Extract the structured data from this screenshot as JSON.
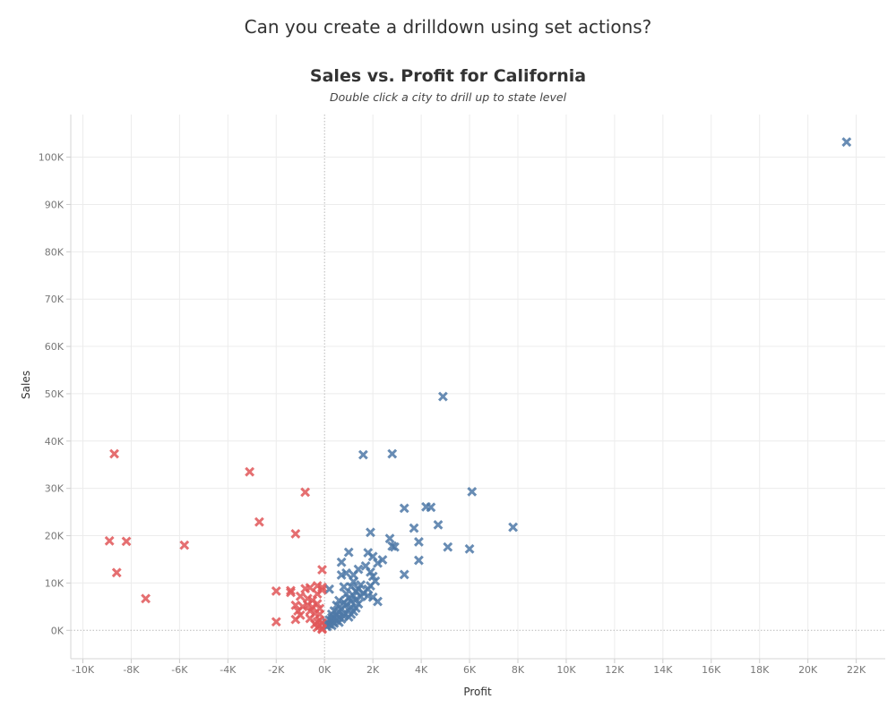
{
  "dashboard_title": "Can you create a drilldown using set actions?",
  "chart_data": {
    "type": "scatter",
    "title": "Sales vs. Profit for California",
    "subtitle": "Double click a city to drill up to state level",
    "xlabel": "Profit",
    "ylabel": "Sales",
    "xlim": [
      -10500,
      23200
    ],
    "ylim": [
      -6000,
      109000
    ],
    "x_ticks": [
      {
        "value": -10000,
        "label": "-10K"
      },
      {
        "value": -8000,
        "label": "-8K"
      },
      {
        "value": -6000,
        "label": "-6K"
      },
      {
        "value": -4000,
        "label": "-4K"
      },
      {
        "value": -2000,
        "label": "-2K"
      },
      {
        "value": 0,
        "label": "0K"
      },
      {
        "value": 2000,
        "label": "2K"
      },
      {
        "value": 4000,
        "label": "4K"
      },
      {
        "value": 6000,
        "label": "6K"
      },
      {
        "value": 8000,
        "label": "8K"
      },
      {
        "value": 10000,
        "label": "10K"
      },
      {
        "value": 12000,
        "label": "12K"
      },
      {
        "value": 14000,
        "label": "14K"
      },
      {
        "value": 16000,
        "label": "16K"
      },
      {
        "value": 18000,
        "label": "18K"
      },
      {
        "value": 20000,
        "label": "20K"
      },
      {
        "value": 22000,
        "label": "22K"
      }
    ],
    "y_ticks": [
      {
        "value": 0,
        "label": "0K"
      },
      {
        "value": 10000,
        "label": "10K"
      },
      {
        "value": 20000,
        "label": "20K"
      },
      {
        "value": 30000,
        "label": "30K"
      },
      {
        "value": 40000,
        "label": "40K"
      },
      {
        "value": 50000,
        "label": "50K"
      },
      {
        "value": 60000,
        "label": "60K"
      },
      {
        "value": 70000,
        "label": "70K"
      },
      {
        "value": 80000,
        "label": "80K"
      },
      {
        "value": 90000,
        "label": "90K"
      },
      {
        "value": 100000,
        "label": "100K"
      }
    ],
    "grid": true,
    "marker": "x",
    "series": [
      {
        "color": "#4e79a7",
        "points": [
          [
            21600,
            103200
          ],
          [
            4900,
            49400
          ],
          [
            2800,
            37300
          ],
          [
            1600,
            37100
          ],
          [
            6100,
            29300
          ],
          [
            4400,
            26000
          ],
          [
            4200,
            26100
          ],
          [
            3300,
            25800
          ],
          [
            7800,
            21800
          ],
          [
            4700,
            22300
          ],
          [
            3700,
            21600
          ],
          [
            1900,
            20700
          ],
          [
            2700,
            19400
          ],
          [
            3900,
            18700
          ],
          [
            5100,
            17600
          ],
          [
            6000,
            17200
          ],
          [
            2800,
            17800
          ],
          [
            2900,
            17600
          ],
          [
            1800,
            16400
          ],
          [
            1000,
            16500
          ],
          [
            2000,
            15600
          ],
          [
            2400,
            14900
          ],
          [
            3900,
            14800
          ],
          [
            2200,
            14200
          ],
          [
            1700,
            13600
          ],
          [
            700,
            14400
          ],
          [
            1400,
            12900
          ],
          [
            1900,
            12300
          ],
          [
            900,
            12100
          ],
          [
            1200,
            11700
          ],
          [
            3300,
            11800
          ],
          [
            2000,
            11400
          ],
          [
            700,
            11700
          ],
          [
            2100,
            10400
          ],
          [
            1200,
            10300
          ],
          [
            1500,
            9600
          ],
          [
            1900,
            9400
          ],
          [
            1100,
            9200
          ],
          [
            800,
            9200
          ],
          [
            1400,
            8700
          ],
          [
            1800,
            8700
          ],
          [
            200,
            8700
          ],
          [
            1300,
            8300
          ],
          [
            1600,
            7900
          ],
          [
            900,
            7700
          ],
          [
            1800,
            7300
          ],
          [
            1200,
            7300
          ],
          [
            1500,
            7100
          ],
          [
            2000,
            7000
          ],
          [
            1000,
            6800
          ],
          [
            1300,
            6500
          ],
          [
            600,
            6300
          ],
          [
            2200,
            6100
          ],
          [
            1100,
            6100
          ],
          [
            800,
            5900
          ],
          [
            1400,
            5600
          ],
          [
            900,
            5400
          ],
          [
            500,
            5300
          ],
          [
            1100,
            4900
          ],
          [
            1300,
            4700
          ],
          [
            700,
            4600
          ],
          [
            1000,
            4300
          ],
          [
            400,
            4100
          ],
          [
            1200,
            4000
          ],
          [
            600,
            3900
          ],
          [
            800,
            3600
          ],
          [
            300,
            3400
          ],
          [
            1100,
            3400
          ],
          [
            500,
            3200
          ],
          [
            800,
            3000
          ],
          [
            600,
            2800
          ],
          [
            1000,
            2800
          ],
          [
            300,
            2700
          ],
          [
            400,
            2500
          ],
          [
            700,
            2400
          ],
          [
            200,
            2200
          ],
          [
            500,
            2100
          ],
          [
            300,
            1900
          ],
          [
            600,
            1700
          ],
          [
            100,
            1600
          ],
          [
            400,
            1500
          ],
          [
            200,
            1300
          ],
          [
            300,
            1000
          ],
          [
            100,
            800
          ]
        ]
      },
      {
        "color": "#e15759",
        "points": [
          [
            -8700,
            37300
          ],
          [
            -3100,
            33500
          ],
          [
            -800,
            29200
          ],
          [
            -2700,
            22900
          ],
          [
            -1200,
            20400
          ],
          [
            -8900,
            18900
          ],
          [
            -8200,
            18800
          ],
          [
            -5800,
            18000
          ],
          [
            -8600,
            12200
          ],
          [
            -100,
            12800
          ],
          [
            -7400,
            6700
          ],
          [
            -1400,
            8400
          ],
          [
            -2000,
            8300
          ],
          [
            -1400,
            8000
          ],
          [
            -300,
            9400
          ],
          [
            -600,
            9000
          ],
          [
            -100,
            9100
          ],
          [
            -100,
            8500
          ],
          [
            -800,
            8800
          ],
          [
            -300,
            7700
          ],
          [
            -1000,
            7200
          ],
          [
            -700,
            6700
          ],
          [
            -1200,
            5300
          ],
          [
            -500,
            6300
          ],
          [
            -700,
            5400
          ],
          [
            -900,
            5000
          ],
          [
            -300,
            5600
          ],
          [
            -500,
            4900
          ],
          [
            -1100,
            4100
          ],
          [
            -200,
            4600
          ],
          [
            -600,
            4100
          ],
          [
            -1000,
            3200
          ],
          [
            -400,
            3600
          ],
          [
            -200,
            3400
          ],
          [
            -1200,
            2300
          ],
          [
            -2000,
            1800
          ],
          [
            -600,
            2500
          ],
          [
            -200,
            2100
          ],
          [
            -300,
            1800
          ],
          [
            -100,
            1600
          ],
          [
            -400,
            1300
          ],
          [
            -200,
            1000
          ],
          [
            -300,
            600
          ],
          [
            -100,
            400
          ],
          [
            -100,
            200
          ]
        ]
      }
    ]
  }
}
